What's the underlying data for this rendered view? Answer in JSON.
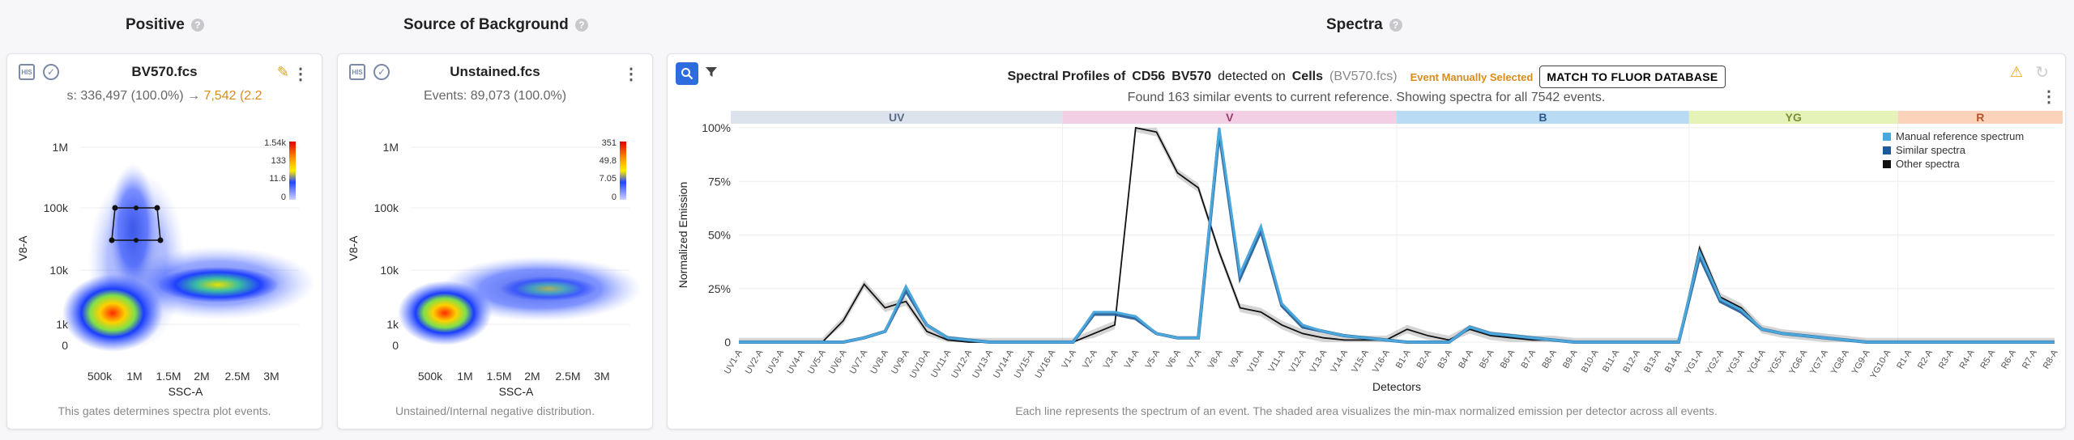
{
  "sections": {
    "positive": "Positive",
    "background": "Source of Background",
    "spectra": "Spectra"
  },
  "positive_card": {
    "file": "BV570.fcs",
    "stats_left": "s: 336,497 (100.0%) → ",
    "stats_right": "7,542 (2.2",
    "footer": "This gates determines spectra plot events.",
    "x_label": "SSC-A",
    "y_label": "V8-A",
    "x_ticks": [
      "500k",
      "1M",
      "1.5M",
      "2M",
      "2.5M",
      "3M"
    ],
    "y_ticks": [
      "1M",
      "100k",
      "10k",
      "1k",
      "0"
    ],
    "scale": [
      "1.54k",
      "133",
      "11.6",
      "0"
    ]
  },
  "background_card": {
    "file": "Unstained.fcs",
    "stats": "Events: 89,073 (100.0%)",
    "footer": "Unstained/Internal negative distribution.",
    "x_label": "SSC-A",
    "y_label": "V8-A",
    "x_ticks": [
      "500k",
      "1M",
      "1.5M",
      "2M",
      "2.5M",
      "3M"
    ],
    "y_ticks": [
      "1M",
      "100k",
      "10k",
      "1k",
      "0"
    ],
    "scale": [
      "351",
      "49.8",
      "7.05",
      "0"
    ]
  },
  "spectra_card": {
    "header_prefix": "Spectral Profiles of",
    "marker": "CD56",
    "fluor": "BV570",
    "detected_on": "detected on",
    "population": "Cells",
    "file_paren": "(BV570.fcs)",
    "manual_badge": "Event Manually Selected",
    "match_button": "MATCH TO FLUOR DATABASE",
    "found_text": "Found 163 similar events to current reference. Showing spectra for all 7542 events.",
    "footer": "Each line represents the spectrum of an event. The shaded area visualizes the min-max normalized emission per detector across all events.",
    "warn_color": "#e8a317",
    "accent": "#2d6cdf"
  },
  "chart_data": {
    "type": "line",
    "ylabel": "Normalized Emission",
    "xlabel": "Detectors",
    "ylim": [
      0,
      100
    ],
    "y_ticks": [
      "0",
      "25%",
      "50%",
      "75%",
      "100%"
    ],
    "lasers": [
      {
        "name": "UV",
        "count": 16,
        "color": "#dde3ec",
        "text": "#5a6a88"
      },
      {
        "name": "V",
        "count": 16,
        "color": "#f2cfe2",
        "text": "#9a3b6e"
      },
      {
        "name": "B",
        "count": 14,
        "color": "#b9dbf4",
        "text": "#2d5a8c"
      },
      {
        "name": "YG",
        "count": 10,
        "color": "#e6f3b8",
        "text": "#7b8d36"
      },
      {
        "name": "R",
        "count": 8,
        "color": "#fbd3bb",
        "text": "#b5542a"
      }
    ],
    "categories": [
      "UV1-A",
      "UV2-A",
      "UV3-A",
      "UV4-A",
      "UV5-A",
      "UV6-A",
      "UV7-A",
      "UV8-A",
      "UV9-A",
      "UV10-A",
      "UV11-A",
      "UV12-A",
      "UV13-A",
      "UV14-A",
      "UV15-A",
      "UV16-A",
      "V1-A",
      "V2-A",
      "V3-A",
      "V4-A",
      "V5-A",
      "V6-A",
      "V7-A",
      "V8-A",
      "V9-A",
      "V10-A",
      "V11-A",
      "V12-A",
      "V13-A",
      "V14-A",
      "V15-A",
      "V16-A",
      "B1-A",
      "B2-A",
      "B3-A",
      "B4-A",
      "B5-A",
      "B6-A",
      "B7-A",
      "B8-A",
      "B9-A",
      "B10-A",
      "B11-A",
      "B12-A",
      "B13-A",
      "B14-A",
      "YG1-A",
      "YG2-A",
      "YG3-A",
      "YG4-A",
      "YG5-A",
      "YG6-A",
      "YG7-A",
      "YG8-A",
      "YG9-A",
      "YG10-A",
      "R1-A",
      "R2-A",
      "R3-A",
      "R4-A",
      "R5-A",
      "R6-A",
      "R7-A",
      "R8-A"
    ],
    "series": [
      {
        "name": "Manual reference spectrum",
        "color": "#4ba8dc",
        "values": [
          0,
          0,
          0,
          0,
          0,
          0,
          2,
          5,
          26,
          8,
          2,
          1,
          0,
          0,
          0,
          0,
          0,
          14,
          14,
          12,
          4,
          2,
          2,
          100,
          32,
          54,
          18,
          8,
          5,
          3,
          2,
          1,
          0,
          0,
          0,
          7,
          4,
          3,
          2,
          1,
          0,
          0,
          0,
          0,
          0,
          0,
          42,
          20,
          15,
          6,
          4,
          3,
          2,
          1,
          0,
          0,
          0,
          0,
          0,
          0,
          0,
          0,
          0,
          0
        ]
      },
      {
        "name": "Similar spectra",
        "color": "#1f5a96",
        "values": [
          0,
          0,
          0,
          0,
          0,
          0,
          2,
          5,
          24,
          8,
          2,
          1,
          0,
          0,
          0,
          0,
          0,
          13,
          13,
          11,
          4,
          2,
          2,
          98,
          30,
          52,
          17,
          7,
          5,
          3,
          2,
          1,
          0,
          0,
          0,
          7,
          4,
          3,
          2,
          1,
          0,
          0,
          0,
          0,
          0,
          0,
          40,
          19,
          14,
          6,
          4,
          3,
          2,
          1,
          0,
          0,
          0,
          0,
          0,
          0,
          0,
          0,
          0,
          0
        ]
      },
      {
        "name": "Other spectra",
        "color": "#111111",
        "values": [
          0,
          0,
          0,
          0,
          0,
          10,
          27,
          16,
          19,
          5,
          1,
          0,
          0,
          0,
          0,
          0,
          0,
          4,
          8,
          100,
          98,
          79,
          72,
          42,
          16,
          14,
          8,
          4,
          2,
          1,
          1,
          1,
          6,
          3,
          1,
          6,
          3,
          2,
          1,
          1,
          0,
          0,
          0,
          0,
          0,
          0,
          44,
          21,
          16,
          6,
          4,
          3,
          2,
          1,
          0,
          0,
          0,
          0,
          0,
          0,
          0,
          0,
          0,
          0
        ]
      }
    ]
  }
}
